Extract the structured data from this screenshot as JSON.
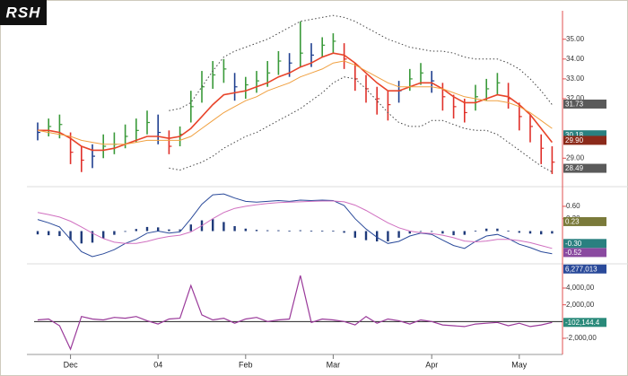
{
  "chart_data": [
    {
      "type": "ohlc",
      "title": "RSH",
      "high": [
        30.8,
        31.0,
        31.2,
        30.3,
        29.6,
        29.7,
        30.2,
        30.3,
        30.7,
        31.0,
        31.4,
        31.2,
        30.4,
        30.6,
        32.4,
        33.4,
        33.9,
        34.0,
        33.3,
        33.1,
        33.4,
        33.9,
        34.4,
        34.3,
        35.9,
        34.8,
        35.1,
        35.3,
        34.8,
        33.8,
        33.2,
        32.6,
        32.4,
        32.9,
        33.5,
        33.8,
        33.4,
        32.8,
        32.2,
        32.0,
        32.7,
        33.0,
        33.3,
        32.8,
        31.8,
        31.2,
        30.2,
        29.6
      ],
      "low": [
        29.9,
        30.1,
        30.0,
        28.7,
        28.3,
        28.5,
        29.0,
        29.2,
        29.5,
        29.8,
        30.2,
        29.7,
        29.2,
        29.6,
        30.8,
        31.8,
        32.5,
        32.8,
        31.9,
        32.0,
        32.3,
        32.6,
        33.2,
        33.1,
        33.6,
        33.6,
        34.1,
        34.3,
        33.5,
        32.4,
        31.8,
        31.2,
        30.9,
        31.8,
        32.4,
        32.7,
        32.3,
        31.4,
        31.0,
        30.8,
        31.4,
        31.9,
        32.2,
        31.5,
        30.4,
        29.8,
        28.7,
        28.2
      ],
      "close": [
        30.3,
        30.6,
        30.7,
        29.3,
        28.9,
        29.1,
        29.6,
        29.7,
        30.1,
        30.4,
        30.8,
        30.3,
        29.6,
        30.2,
        31.6,
        32.6,
        33.2,
        33.5,
        32.6,
        32.7,
        32.9,
        33.3,
        33.9,
        33.8,
        34.3,
        34.2,
        34.7,
        34.9,
        34.0,
        33.0,
        32.5,
        32.0,
        31.7,
        32.4,
        33.0,
        33.3,
        32.9,
        32.1,
        31.6,
        31.3,
        32.1,
        32.5,
        32.8,
        32.0,
        31.1,
        30.6,
        29.5,
        28.8
      ],
      "bar_colors": {
        "up": "#3a9a3a",
        "down": "#e0302a",
        "neutral": "#1f3f8f"
      },
      "lines": [
        {
          "color": "#e8442a",
          "width": 1.6,
          "values": [
            30.4,
            30.4,
            30.3,
            30.0,
            29.6,
            29.4,
            29.4,
            29.5,
            29.7,
            29.9,
            30.1,
            30.1,
            30.0,
            30.1,
            30.5,
            31.1,
            31.7,
            32.2,
            32.3,
            32.4,
            32.6,
            32.8,
            33.1,
            33.3,
            33.6,
            33.8,
            34.1,
            34.3,
            34.2,
            33.8,
            33.3,
            32.8,
            32.4,
            32.4,
            32.6,
            32.8,
            32.8,
            32.5,
            32.1,
            31.8,
            31.8,
            32.0,
            32.2,
            32.1,
            31.7,
            31.2,
            30.5,
            29.8
          ]
        },
        {
          "color": "#f0a040",
          "width": 1,
          "values": [
            30.4,
            30.3,
            30.2,
            30.1,
            29.9,
            29.8,
            29.7,
            29.7,
            29.7,
            29.8,
            29.9,
            29.9,
            29.9,
            29.9,
            30.1,
            30.5,
            30.9,
            31.3,
            31.6,
            31.9,
            32.1,
            32.4,
            32.6,
            32.8,
            33.1,
            33.3,
            33.5,
            33.8,
            33.9,
            33.7,
            33.4,
            33.1,
            32.8,
            32.6,
            32.6,
            32.6,
            32.6,
            32.5,
            32.3,
            32.1,
            32.0,
            31.9,
            31.9,
            31.8,
            31.6,
            31.3,
            30.9,
            30.5
          ]
        },
        {
          "color": "#444444",
          "width": 1,
          "dash": true,
          "values": [
            null,
            null,
            null,
            null,
            null,
            null,
            null,
            null,
            null,
            null,
            null,
            null,
            31.4,
            31.5,
            31.8,
            32.6,
            33.4,
            34.1,
            34.4,
            34.6,
            34.8,
            35.0,
            35.3,
            35.6,
            35.9,
            36.0,
            36.1,
            36.2,
            36.1,
            35.9,
            35.6,
            35.3,
            35.0,
            34.8,
            34.6,
            34.5,
            34.4,
            34.4,
            34.3,
            34.1,
            34.0,
            34.0,
            34.0,
            33.8,
            33.5,
            33.0,
            32.4,
            31.7
          ]
        },
        {
          "color": "#444444",
          "width": 1,
          "dash": true,
          "values": [
            null,
            null,
            null,
            null,
            null,
            null,
            null,
            null,
            null,
            null,
            null,
            null,
            28.5,
            28.4,
            28.6,
            28.8,
            29.1,
            29.5,
            29.8,
            30.1,
            30.3,
            30.6,
            30.9,
            31.2,
            31.5,
            31.9,
            32.3,
            32.8,
            33.1,
            33.0,
            32.5,
            31.9,
            31.3,
            30.8,
            30.6,
            30.6,
            30.9,
            30.9,
            30.7,
            30.5,
            30.4,
            30.4,
            30.2,
            29.8,
            29.4,
            29.0,
            28.6,
            28.3
          ]
        }
      ],
      "ylim": [
        27.7,
        36.3
      ],
      "yticks": [
        {
          "value": 29,
          "label": "29.00"
        },
        {
          "value": 32,
          "label": "32.00"
        },
        {
          "value": 33,
          "label": "33.00"
        },
        {
          "value": 34,
          "label": "34.00"
        },
        {
          "value": 35,
          "label": "35.00"
        }
      ],
      "markers": [
        {
          "value": 31.73,
          "color": "#5a5a5a"
        },
        {
          "value": 30.18,
          "color": "#2a8080"
        },
        {
          "value": 29.9,
          "label": "29.90",
          "color": "#8b2a1a"
        },
        {
          "value": 28.49,
          "color": "#5a5a5a"
        }
      ]
    },
    {
      "type": "macd",
      "histogram": [
        -0.08,
        -0.1,
        -0.12,
        -0.22,
        -0.3,
        -0.28,
        -0.18,
        -0.09,
        0,
        0.05,
        0.1,
        0.09,
        0.04,
        0.04,
        0.16,
        0.26,
        0.29,
        0.22,
        0.12,
        0.06,
        0.03,
        0.02,
        0.02,
        0.01,
        0.02,
        0.01,
        0.01,
        0.01,
        -0.04,
        -0.16,
        -0.22,
        -0.25,
        -0.25,
        -0.16,
        -0.06,
        -0.01,
        -0.01,
        -0.06,
        -0.1,
        -0.09,
        0.01,
        0.06,
        0.06,
        0.01,
        -0.04,
        -0.06,
        -0.08,
        -0.06
      ],
      "hist_color": "#1f3a7a",
      "lines": [
        {
          "color": "#2a4a9a",
          "width": 1,
          "values": [
            0.28,
            0.2,
            0.1,
            -0.2,
            -0.5,
            -0.62,
            -0.55,
            -0.45,
            -0.3,
            -0.2,
            -0.05,
            0.0,
            -0.05,
            -0.02,
            0.3,
            0.65,
            0.88,
            0.9,
            0.8,
            0.72,
            0.7,
            0.72,
            0.74,
            0.72,
            0.75,
            0.74,
            0.75,
            0.74,
            0.62,
            0.3,
            0.05,
            -0.15,
            -0.3,
            -0.25,
            -0.12,
            -0.05,
            -0.08,
            -0.22,
            -0.35,
            -0.42,
            -0.25,
            -0.12,
            -0.08,
            -0.18,
            -0.32,
            -0.4,
            -0.5,
            -0.55
          ]
        },
        {
          "color": "#d070c0",
          "width": 1,
          "values": [
            0.45,
            0.4,
            0.34,
            0.24,
            0.1,
            -0.05,
            -0.18,
            -0.27,
            -0.3,
            -0.3,
            -0.25,
            -0.18,
            -0.13,
            -0.1,
            -0.02,
            0.13,
            0.3,
            0.45,
            0.55,
            0.6,
            0.64,
            0.67,
            0.69,
            0.7,
            0.71,
            0.72,
            0.73,
            0.73,
            0.71,
            0.63,
            0.5,
            0.35,
            0.2,
            0.08,
            0.0,
            -0.04,
            -0.06,
            -0.1,
            -0.16,
            -0.24,
            -0.26,
            -0.24,
            -0.2,
            -0.2,
            -0.23,
            -0.28,
            -0.35,
            -0.42
          ]
        }
      ],
      "ylim": [
        -0.75,
        0.99
      ],
      "yticks": [
        {
          "value": 0.3,
          "label": "0.30"
        },
        {
          "value": 0.6,
          "label": "0.60"
        }
      ],
      "markers": [
        {
          "value": 0.23,
          "color": "#7a7a3a"
        },
        {
          "value": -0.3,
          "label": "-0.30",
          "color": "#2a8080"
        },
        {
          "value": -0.52,
          "color": "#8a4aa0"
        }
      ]
    },
    {
      "type": "line",
      "categories": [
        null,
        null,
        null,
        "Dec",
        null,
        null,
        null,
        null,
        null,
        null,
        null,
        "04",
        null,
        null,
        null,
        null,
        null,
        null,
        null,
        "Feb",
        null,
        null,
        null,
        null,
        null,
        null,
        null,
        "Mar",
        null,
        null,
        null,
        null,
        null,
        null,
        null,
        null,
        "Apr",
        null,
        null,
        null,
        null,
        null,
        null,
        null,
        "May",
        null,
        null,
        null
      ],
      "values": [
        200000,
        300000,
        -500000,
        -3300000,
        600000,
        300000,
        200000,
        500000,
        400000,
        600000,
        100000,
        -300000,
        300000,
        400000,
        4300000,
        800000,
        200000,
        400000,
        -200000,
        300000,
        500000,
        0,
        200000,
        300000,
        5500000,
        -100000,
        300000,
        200000,
        0,
        -400000,
        600000,
        -200000,
        300000,
        100000,
        -300000,
        200000,
        0,
        -400000,
        -500000,
        -600000,
        -300000,
        -200000,
        -100000,
        -500000,
        -200000,
        -600000,
        -400000,
        -100000
      ],
      "color": "#9a3a9a",
      "zero_line": true,
      "ylim": [
        -3930000,
        6680000
      ],
      "yticks": [
        {
          "value": -2000000,
          "label": "-2,000,00"
        },
        {
          "value": 2000000,
          "label": "2,000,00"
        },
        {
          "value": 4000000,
          "label": "4,000,00"
        }
      ],
      "markers": [
        {
          "value": 6277013,
          "label": "6,277,013",
          "color": "#2a4a9a"
        },
        {
          "value": -102144.4,
          "label": "-102,144.4",
          "color": "#2a8a7a"
        }
      ]
    }
  ]
}
